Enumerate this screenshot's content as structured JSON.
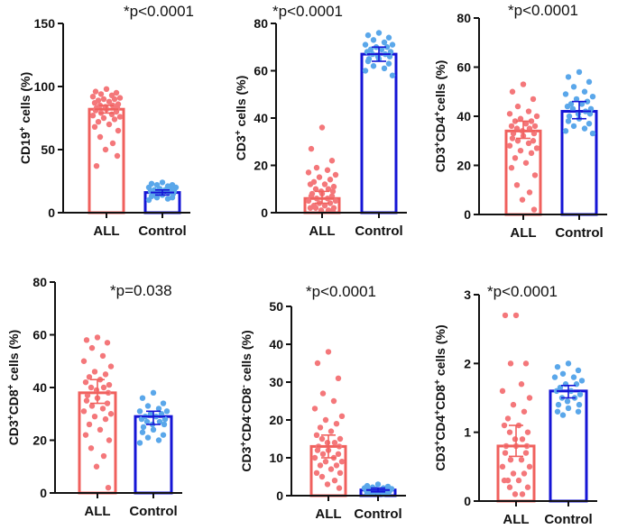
{
  "colors": {
    "all_red": "#f0605d",
    "control_blue": "#1515d6",
    "dot_red": "#f4777a",
    "dot_blue": "#5aa7ea",
    "axis": "#111111"
  },
  "chart_data": [
    {
      "type": "bar",
      "id": "cd19",
      "categories": [
        "ALL",
        "Control"
      ],
      "values": [
        82,
        16
      ],
      "ci": [
        [
          79,
          85
        ],
        [
          14,
          18
        ]
      ],
      "ylim": [
        0,
        150
      ],
      "yticks": [
        0,
        50,
        100,
        150
      ],
      "ylabel": {
        "pre": "CD19",
        "sup1": "+",
        "post": " cells (%)"
      },
      "pvalue": "*p<0.0001",
      "points": [
        [
          98,
          96,
          95,
          94,
          93,
          92,
          91,
          90,
          90,
          89,
          88,
          87,
          86,
          85,
          85,
          84,
          83,
          83,
          82,
          81,
          80,
          79,
          78,
          77,
          76,
          75,
          74,
          72,
          70,
          68,
          65,
          60,
          55,
          50,
          45,
          37
        ],
        [
          24,
          23,
          22,
          22,
          21,
          20,
          20,
          19,
          19,
          18,
          18,
          17,
          17,
          16,
          16,
          15,
          15,
          14,
          14,
          13,
          12,
          12,
          11,
          10
        ]
      ]
    },
    {
      "type": "bar",
      "id": "cd3",
      "categories": [
        "ALL",
        "Control"
      ],
      "values": [
        6,
        67
      ],
      "ci": [
        [
          4,
          9
        ],
        [
          64,
          70
        ]
      ],
      "ylim": [
        0,
        80
      ],
      "yticks": [
        0,
        20,
        40,
        60,
        80
      ],
      "ylabel": {
        "pre": "CD3",
        "sup1": "+",
        "post": " cells (%)"
      },
      "pvalue": "*p<0.0001",
      "points": [
        [
          36,
          27,
          22,
          19,
          18,
          17,
          16,
          15,
          14,
          13,
          12,
          12,
          11,
          10,
          10,
          9,
          9,
          8,
          8,
          7,
          7,
          6,
          6,
          5,
          5,
          4,
          4,
          3,
          3,
          2,
          2,
          2,
          1,
          1,
          1
        ],
        [
          76,
          75,
          74,
          73,
          72,
          71,
          71,
          70,
          70,
          69,
          69,
          68,
          68,
          67,
          67,
          66,
          66,
          65,
          65,
          64,
          63,
          62,
          61,
          60,
          58
        ]
      ]
    },
    {
      "type": "bar",
      "id": "cd3cd4",
      "categories": [
        "ALL",
        "Control"
      ],
      "values": [
        34,
        42
      ],
      "ci": [
        [
          31,
          38
        ],
        [
          39,
          46
        ]
      ],
      "ylim": [
        0,
        80
      ],
      "yticks": [
        0,
        20,
        40,
        60,
        80
      ],
      "ylabel": {
        "pre": "CD3",
        "sup1": "+",
        "mid": "CD4",
        "sup2": "+",
        "post": "cells (%)"
      },
      "pvalue": "*p<0.0001",
      "points": [
        [
          53,
          50,
          47,
          44,
          42,
          41,
          40,
          39,
          38,
          38,
          37,
          36,
          36,
          35,
          35,
          34,
          33,
          33,
          32,
          31,
          30,
          30,
          29,
          28,
          27,
          26,
          25,
          23,
          21,
          19,
          16,
          12,
          9,
          6,
          2
        ],
        [
          58,
          56,
          54,
          52,
          50,
          49,
          48,
          47,
          46,
          45,
          45,
          44,
          43,
          43,
          42,
          41,
          41,
          40,
          39,
          38,
          37,
          36,
          35,
          34,
          33
        ]
      ]
    },
    {
      "type": "bar",
      "id": "cd3cd8",
      "categories": [
        "ALL",
        "Control"
      ],
      "values": [
        38,
        29
      ],
      "ci": [
        [
          34,
          43
        ],
        [
          26,
          31
        ]
      ],
      "ylim": [
        0,
        80
      ],
      "yticks": [
        0,
        20,
        40,
        60,
        80
      ],
      "ylabel": {
        "pre": "CD3",
        "sup1": "+",
        "mid": "CD8",
        "sup2": "+",
        "post": " cells (%)"
      },
      "pvalue": "*p=0.038",
      "points": [
        [
          59,
          58,
          57,
          55,
          52,
          50,
          48,
          46,
          45,
          44,
          43,
          42,
          41,
          40,
          40,
          39,
          38,
          37,
          36,
          35,
          34,
          33,
          32,
          31,
          30,
          29,
          28,
          26,
          24,
          22,
          20,
          17,
          14,
          10,
          2
        ],
        [
          38,
          36,
          34,
          33,
          32,
          31,
          31,
          30,
          30,
          29,
          29,
          28,
          28,
          27,
          27,
          26,
          26,
          25,
          24,
          23,
          22,
          21,
          20,
          19
        ]
      ]
    },
    {
      "type": "bar",
      "id": "cd3cd4cd8neg",
      "categories": [
        "ALL",
        "Control"
      ],
      "values": [
        13,
        1.5
      ],
      "ci": [
        [
          10,
          16
        ],
        [
          1,
          2
        ]
      ],
      "ylim": [
        0,
        50
      ],
      "yticks": [
        0,
        10,
        20,
        30,
        40,
        50
      ],
      "ylabel": {
        "pre": "CD3",
        "sup1": "+",
        "mid": "CD4",
        "sup2": "-",
        "mid2": "CD8",
        "sup3": "-",
        "post": " cells (%)"
      },
      "pvalue": "*p<0.0001",
      "points": [
        [
          38,
          35,
          31,
          27,
          25,
          23,
          21,
          20,
          19,
          18,
          17,
          16,
          15,
          15,
          14,
          14,
          13,
          13,
          12,
          12,
          11,
          11,
          10,
          10,
          9,
          9,
          8,
          8,
          7,
          6,
          6,
          5,
          4,
          3,
          2
        ],
        [
          3,
          2.6,
          2.4,
          2.2,
          2,
          2,
          1.8,
          1.7,
          1.6,
          1.5,
          1.5,
          1.4,
          1.3,
          1.2,
          1.1,
          1,
          1,
          0.9,
          0.8,
          0.7,
          0.6,
          0.5,
          0.4
        ]
      ]
    },
    {
      "type": "bar",
      "id": "cd3cd4cd8pos",
      "categories": [
        "ALL",
        "Control"
      ],
      "values": [
        0.8,
        1.6
      ],
      "ci": [
        [
          0.65,
          1.1
        ],
        [
          1.5,
          1.68
        ]
      ],
      "ylim": [
        0,
        3
      ],
      "yticks": [
        0,
        1,
        2,
        3
      ],
      "ylabel": {
        "pre": "CD3",
        "sup1": "+",
        "mid": "CD4",
        "sup2": "+",
        "mid2": "CD8",
        "sup3": "+",
        "post": " cells (%)"
      },
      "pvalue": "*p<0.0001",
      "points": [
        [
          2.7,
          2.7,
          2.0,
          2.0,
          1.7,
          1.6,
          1.5,
          1.4,
          1.3,
          1.2,
          1.1,
          1.1,
          1.0,
          1.0,
          0.9,
          0.9,
          0.8,
          0.8,
          0.8,
          0.7,
          0.7,
          0.6,
          0.6,
          0.5,
          0.5,
          0.4,
          0.4,
          0.3,
          0.3,
          0.3,
          0.2,
          0.2,
          0.1,
          0.1
        ],
        [
          2.0,
          1.95,
          1.9,
          1.85,
          1.8,
          1.8,
          1.75,
          1.7,
          1.7,
          1.65,
          1.6,
          1.6,
          1.55,
          1.5,
          1.5,
          1.45,
          1.4,
          1.4,
          1.35,
          1.3,
          1.3,
          1.25
        ]
      ]
    }
  ]
}
